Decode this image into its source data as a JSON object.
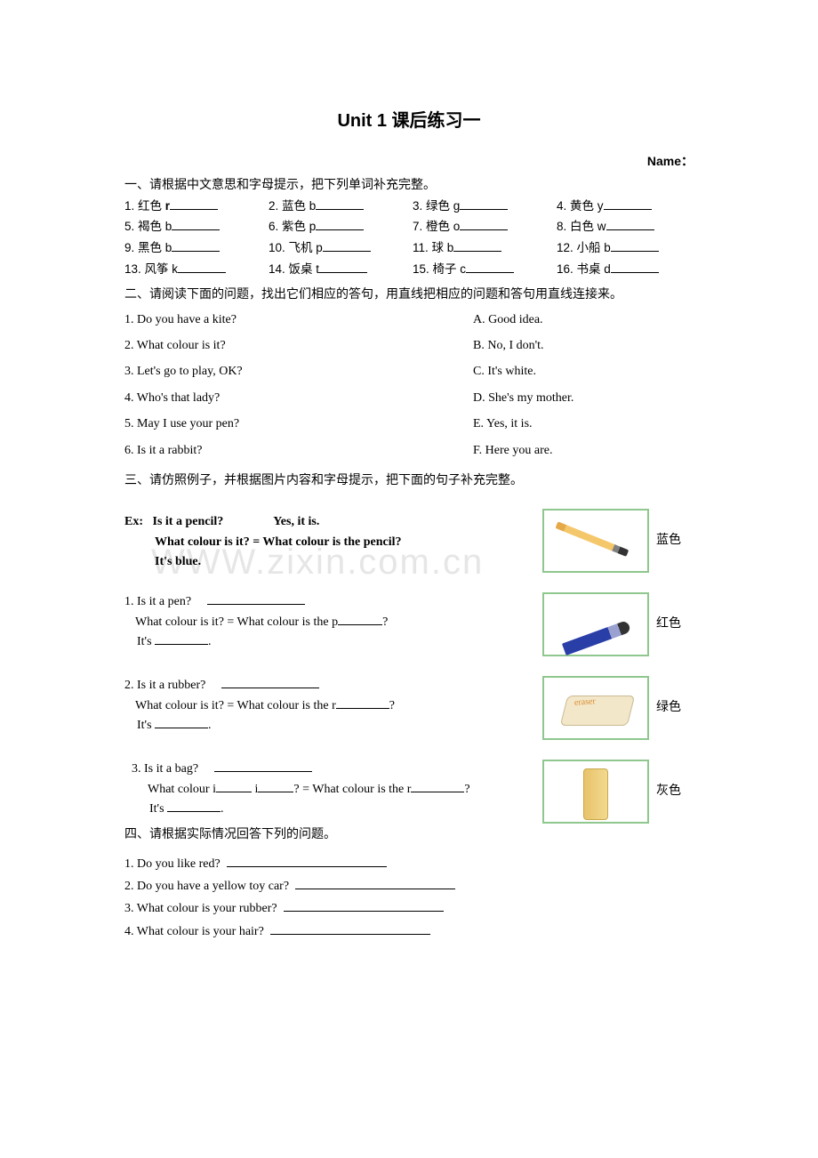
{
  "document": {
    "title_prefix": "Unit 1",
    "title_suffix": " 课后练习一",
    "name_label": "Name：",
    "watermark": "WWW.zixin.com.cn",
    "font_main": "Comic Sans MS",
    "font_cjk": "SimSun",
    "page_bg": "#ffffff",
    "text_color": "#000000",
    "card_border_color": "#8fc78f"
  },
  "section1": {
    "heading": "一、请根据中文意思和字母提示，把下列单词补充完整。",
    "items": [
      {
        "n": "1.",
        "cn": "红色",
        "letter": "r",
        "bold": true
      },
      {
        "n": "2.",
        "cn": "蓝色",
        "letter": "b"
      },
      {
        "n": "3.",
        "cn": "绿色",
        "letter": "g"
      },
      {
        "n": "4.",
        "cn": "黄色",
        "letter": "y"
      },
      {
        "n": "5.",
        "cn": "褐色",
        "letter": "b"
      },
      {
        "n": "6.",
        "cn": "紫色",
        "letter": "p"
      },
      {
        "n": "7.",
        "cn": "橙色",
        "letter": "o"
      },
      {
        "n": "8.",
        "cn": "白色",
        "letter": "w"
      },
      {
        "n": "9.",
        "cn": "黑色",
        "letter": "b"
      },
      {
        "n": "10.",
        "cn": "飞机",
        "letter": "p"
      },
      {
        "n": "11.",
        "cn": "球",
        "letter": "b"
      },
      {
        "n": "12.",
        "cn": "小船",
        "letter": "b"
      },
      {
        "n": "13.",
        "cn": "风筝",
        "letter": "k"
      },
      {
        "n": "14.",
        "cn": "饭桌",
        "letter": "t"
      },
      {
        "n": "15.",
        "cn": "椅子",
        "letter": "c"
      },
      {
        "n": "16.",
        "cn": "书桌",
        "letter": "d"
      }
    ]
  },
  "section2": {
    "heading": "二、请阅读下面的问题，找出它们相应的答句，用直线把相应的问题和答句用直线连接来。",
    "pairs": [
      {
        "q": "1. Do you have a kite?",
        "a": "A. Good idea."
      },
      {
        "q": "2. What colour is it?",
        "a": "B. No, I don't."
      },
      {
        "q": "3. Let's go to play, OK?",
        "a": "C. It's white."
      },
      {
        "q": "4. Who's that lady?",
        "a": "D. She's my mother."
      },
      {
        "q": "5. May I use your pen?",
        "a": "E. Yes, it is."
      },
      {
        "q": "6. Is it a rabbit?",
        "a": "F. Here you are."
      }
    ]
  },
  "section3": {
    "heading": "三、请仿照例子，并根据图片内容和字母提示，把下面的句子补充完整。",
    "example": {
      "label": "Ex:",
      "line1": "Is it a pencil?",
      "line1b": "Yes, it is.",
      "line2": "What colour is it? = What colour is the pencil?",
      "line3": "It's blue.",
      "caption": "蓝色",
      "img_alt": "pencil-flashcard"
    },
    "q1": {
      "line1": "1. Is it a pen?",
      "line2_a": "What colour is it? = What colour is the p",
      "line2_b": "?",
      "line3_a": "It's ",
      "line3_b": ".",
      "caption": "红色",
      "img_alt": "pen-flashcard"
    },
    "q2": {
      "line1": "2. Is it a rubber?",
      "line2_a": "What colour is it? = What colour is the r",
      "line2_b": "?",
      "line3_a": "It's ",
      "line3_b": ".",
      "caption": "绿色",
      "img_alt": "eraser-flashcard"
    },
    "q3": {
      "line1": "3.  Is it a bag?",
      "line2_a": "What colour i",
      "line2_b": " i",
      "line2_c": "? = What colour is the r",
      "line2_d": "?",
      "line3_a": "It's ",
      "line3_b": ".",
      "caption": "灰色",
      "img_alt": "ruler-flashcard"
    }
  },
  "section4": {
    "heading": "四、请根据实际情况回答下列的问题。",
    "rows": [
      "1. Do you like red?",
      "2. Do you have a yellow toy car?",
      "3. What colour is your rubber?",
      "4. What colour is your hair?"
    ]
  }
}
